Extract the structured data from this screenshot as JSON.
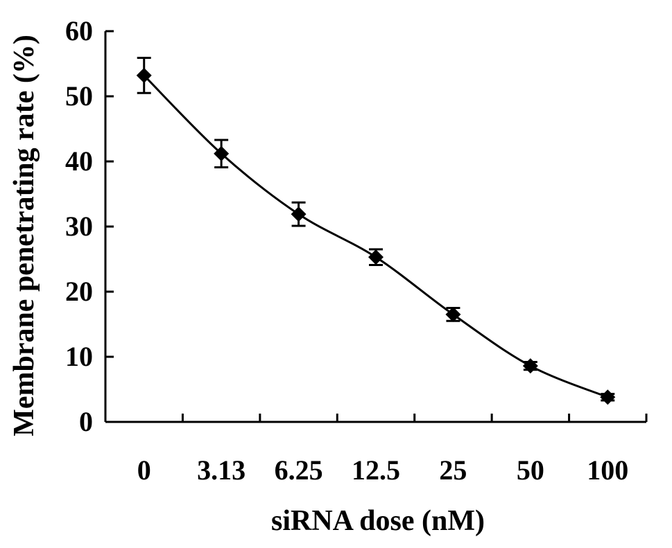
{
  "chart_data": {
    "type": "line",
    "title": "",
    "xlabel": "siRNA dose (nM)",
    "ylabel": "Membrane penetrating rate (%)",
    "categories": [
      "0",
      "3.13",
      "6.25",
      "12.5",
      "25",
      "50",
      "100"
    ],
    "series": [
      {
        "values": [
          53.2,
          41.2,
          31.9,
          25.3,
          16.5,
          8.6,
          3.8
        ],
        "error": [
          2.7,
          2.1,
          1.8,
          1.2,
          1.0,
          0.6,
          0.5
        ],
        "marker": "diamond",
        "color": "#000000"
      }
    ],
    "ylim": [
      0,
      60
    ],
    "yticks": [
      "0",
      "10",
      "20",
      "30",
      "40",
      "50",
      "60"
    ],
    "grid": false,
    "legend": "none"
  }
}
